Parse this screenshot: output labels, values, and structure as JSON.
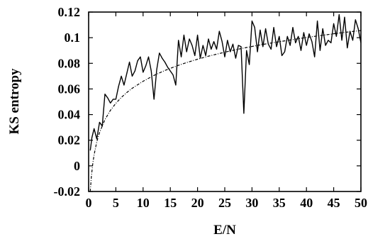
{
  "chart_data": {
    "type": "line",
    "xlabel": "E/N",
    "ylabel": "KS entropy",
    "xlim": [
      0,
      50
    ],
    "ylim": [
      -0.02,
      0.12
    ],
    "xticks": [
      0,
      5,
      10,
      15,
      20,
      25,
      30,
      35,
      40,
      45,
      50
    ],
    "yticks": [
      -0.02,
      0,
      0.02,
      0.04,
      0.06,
      0.08,
      0.1,
      0.12
    ],
    "xtick_labels": [
      "0",
      "5",
      "10",
      "15",
      "20",
      "25",
      "30",
      "35",
      "40",
      "45",
      "50"
    ],
    "ytick_labels": [
      "-0.02",
      "0",
      "0.02",
      "0.04",
      "0.06",
      "0.08",
      "0.1",
      "0.12"
    ],
    "grid": false,
    "legend": "none",
    "series": [
      {
        "style": "solid",
        "color": "#000000",
        "x": [
          0.3,
          0.6,
          1.0,
          1.5,
          2.0,
          2.5,
          3.0,
          3.5,
          4.0,
          4.5,
          5.0,
          5.5,
          6.0,
          6.5,
          7.0,
          7.5,
          8.0,
          8.5,
          9.0,
          9.5,
          10.0,
          10.5,
          11.0,
          11.5,
          12.0,
          12.5,
          13.0,
          13.5,
          14.0,
          14.5,
          15.0,
          15.5,
          16.0,
          16.5,
          17.0,
          17.5,
          18.0,
          18.5,
          19.0,
          19.5,
          20.0,
          20.5,
          21.0,
          21.5,
          22.0,
          22.5,
          23.0,
          23.5,
          24.0,
          24.5,
          25.0,
          25.5,
          26.0,
          26.5,
          27.0,
          27.5,
          28.0,
          28.5,
          29.0,
          29.5,
          30.0,
          30.5,
          31.0,
          31.5,
          32.0,
          32.5,
          33.0,
          33.5,
          34.0,
          34.5,
          35.0,
          35.5,
          36.0,
          36.5,
          37.0,
          37.5,
          38.0,
          38.5,
          39.0,
          39.5,
          40.0,
          40.5,
          41.0,
          41.5,
          42.0,
          42.5,
          43.0,
          43.5,
          44.0,
          44.5,
          45.0,
          45.5,
          46.0,
          46.5,
          47.0,
          47.5,
          48.0,
          48.5,
          49.0,
          49.5,
          50.0
        ],
        "y": [
          0.012,
          0.022,
          0.029,
          0.021,
          0.034,
          0.031,
          0.056,
          0.053,
          0.049,
          0.052,
          0.052,
          0.062,
          0.07,
          0.063,
          0.072,
          0.081,
          0.07,
          0.074,
          0.082,
          0.085,
          0.073,
          0.078,
          0.085,
          0.074,
          0.052,
          0.075,
          0.088,
          0.084,
          0.081,
          0.077,
          0.074,
          0.071,
          0.063,
          0.098,
          0.085,
          0.102,
          0.089,
          0.099,
          0.094,
          0.086,
          0.102,
          0.084,
          0.094,
          0.086,
          0.099,
          0.091,
          0.097,
          0.091,
          0.105,
          0.097,
          0.085,
          0.098,
          0.089,
          0.095,
          0.084,
          0.094,
          0.093,
          0.041,
          0.09,
          0.079,
          0.113,
          0.108,
          0.089,
          0.106,
          0.093,
          0.107,
          0.095,
          0.091,
          0.108,
          0.093,
          0.101,
          0.086,
          0.089,
          0.101,
          0.094,
          0.108,
          0.096,
          0.101,
          0.09,
          0.104,
          0.094,
          0.103,
          0.097,
          0.085,
          0.113,
          0.09,
          0.107,
          0.094,
          0.098,
          0.096,
          0.111,
          0.101,
          0.118,
          0.098,
          0.116,
          0.092,
          0.105,
          0.098,
          0.114,
          0.107,
          0.096
        ]
      },
      {
        "style": "dashed",
        "color": "#000000",
        "x": [
          0.3,
          0.5,
          0.75,
          1,
          1.5,
          2,
          3,
          4,
          5,
          6,
          7,
          8,
          10,
          12,
          14,
          16,
          18,
          20,
          22,
          25,
          28,
          31,
          34,
          37,
          40,
          43,
          46,
          50
        ],
        "y": [
          -0.02,
          -0.0086,
          0.0015,
          0.0086,
          0.0188,
          0.026,
          0.0361,
          0.0433,
          0.0488,
          0.0534,
          0.0572,
          0.0605,
          0.066,
          0.0706,
          0.0744,
          0.0777,
          0.0806,
          0.0832,
          0.0856,
          0.0887,
          0.0915,
          0.094,
          0.0962,
          0.0982,
          0.1002,
          0.1019,
          0.1036,
          0.1056
        ]
      }
    ]
  }
}
